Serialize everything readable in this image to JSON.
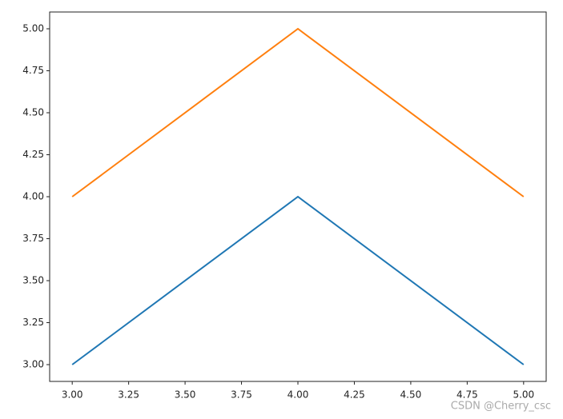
{
  "chart_data": {
    "type": "line",
    "x": [
      3,
      4,
      5
    ],
    "series": [
      {
        "color": "#1f77b4",
        "values": [
          3,
          4,
          3
        ]
      },
      {
        "color": "#ff7f0e",
        "values": [
          4,
          5,
          4
        ]
      }
    ],
    "xlim": [
      2.9,
      5.1
    ],
    "ylim": [
      2.9,
      5.1
    ],
    "xticks": [
      {
        "value": 3,
        "label": "3.00"
      },
      {
        "value": 3.25,
        "label": "3.25"
      },
      {
        "value": 3.5,
        "label": "3.50"
      },
      {
        "value": 3.75,
        "label": "3.75"
      },
      {
        "value": 4,
        "label": "4.00"
      },
      {
        "value": 4.25,
        "label": "4.25"
      },
      {
        "value": 4.5,
        "label": "4.50"
      },
      {
        "value": 4.75,
        "label": "4.75"
      },
      {
        "value": 5,
        "label": "5.00"
      }
    ],
    "yticks": [
      {
        "value": 3,
        "label": "3.00"
      },
      {
        "value": 3.25,
        "label": "3.25"
      },
      {
        "value": 3.5,
        "label": "3.50"
      },
      {
        "value": 3.75,
        "label": "3.75"
      },
      {
        "value": 4,
        "label": "4.00"
      },
      {
        "value": 4.25,
        "label": "4.25"
      },
      {
        "value": 4.5,
        "label": "4.50"
      },
      {
        "value": 4.75,
        "label": "4.75"
      },
      {
        "value": 5,
        "label": "5.00"
      }
    ],
    "grid": false,
    "watermark": "CSDN @Cherry_csc"
  }
}
